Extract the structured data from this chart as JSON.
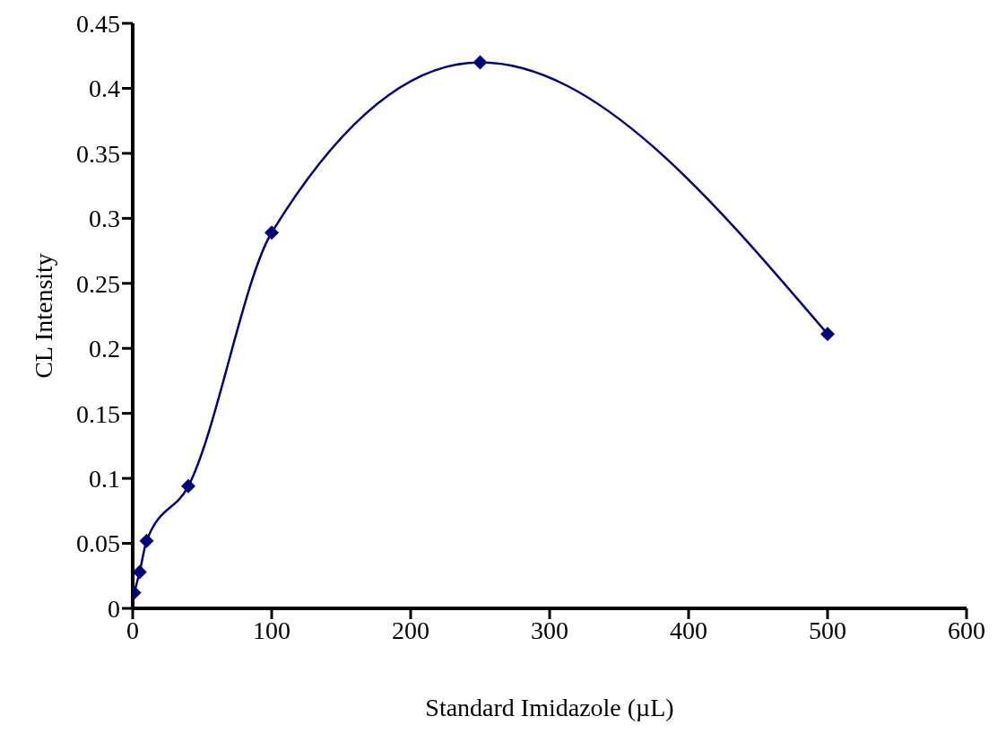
{
  "chart_data": {
    "type": "line",
    "xlabel": "Standard Imidazole  (µL)",
    "ylabel": "CL Intensity",
    "x": [
      1,
      5,
      10,
      40,
      100,
      250,
      500
    ],
    "series": [
      {
        "color": "#000080",
        "values": [
          0.012,
          0.028,
          0.052,
          0.094,
          0.289,
          0.42,
          0.211
        ]
      }
    ],
    "xlim": [
      0,
      600
    ],
    "xticks": [
      0,
      100,
      200,
      300,
      400,
      500,
      600
    ],
    "ylim": [
      0,
      0.45
    ],
    "yticks": [
      0,
      0.05,
      0.1,
      0.15,
      0.2,
      0.25,
      0.3,
      0.35,
      0.4,
      0.45
    ],
    "marker": "diamond",
    "line_style": "solid"
  }
}
